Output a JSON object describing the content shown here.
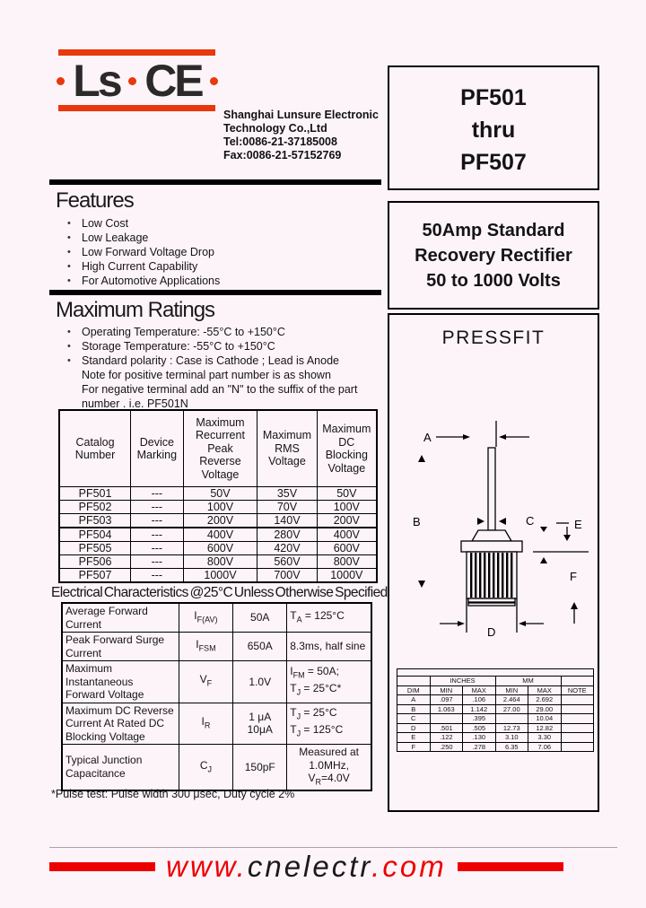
{
  "ui": {
    "bullet": "•"
  },
  "colors": {
    "logo_red": "#e8380d",
    "footer_red": "#ee0000",
    "page_bg": "#fdf4f9"
  },
  "logo": {
    "text_left": "Ls",
    "text_right": "CE"
  },
  "company": {
    "line1": "Shanghai Lunsure Electronic",
    "line2": "Technology Co.,Ltd",
    "line3": "Tel:0086-21-37185008",
    "line4": "Fax:0086-21-57152769"
  },
  "part_box": {
    "line1": "PF501",
    "line2": "thru",
    "line3": "PF507"
  },
  "desc_box": {
    "line1": "50Amp Standard",
    "line2": "Recovery Rectifier",
    "line3": "50 to 1000 Volts"
  },
  "features": {
    "title": "Features",
    "items": [
      "Low Cost",
      "Low Leakage",
      "Low Forward Voltage Drop",
      "High Current Capability",
      "For Automotive Applications"
    ]
  },
  "max_ratings": {
    "title": "Maximum Ratings",
    "items": [
      {
        "lines": [
          "Operating Temperature: -55°C to +150°C"
        ]
      },
      {
        "lines": [
          "Storage Temperature: -55°C to +150°C"
        ]
      },
      {
        "lines": [
          "Standard polarity : Case is Cathode ; Lead is Anode",
          "Note for positive terminal part number is as shown",
          "For negative terminal add an \"N\" to the suffix of the part",
          "number . i.e. PF501N"
        ]
      }
    ]
  },
  "ratings_table": {
    "headers": [
      "Catalog Number",
      "Device Marking",
      "Maximum Recurrent Peak Reverse Voltage",
      "Maximum RMS Voltage",
      "Maximum DC Blocking Voltage"
    ],
    "rows": [
      [
        "PF501",
        "---",
        "50V",
        "35V",
        "50V"
      ],
      [
        "PF502",
        "---",
        "100V",
        "70V",
        "100V"
      ],
      [
        "PF503",
        "---",
        "200V",
        "140V",
        "200V"
      ],
      [
        "PF504",
        "---",
        "400V",
        "280V",
        "400V"
      ],
      [
        "PF505",
        "---",
        "600V",
        "420V",
        "600V"
      ],
      [
        "PF506",
        "---",
        "800V",
        "560V",
        "800V"
      ],
      [
        "PF507",
        "---",
        "1000V",
        "700V",
        "1000V"
      ]
    ]
  },
  "elec": {
    "title": "Electrical Characteristics @25°C Unless Otherwise Specified",
    "footnote": "*Pulse test: Pulse width 300 μsec, Duty cycle 2%",
    "rows": [
      {
        "param": "Average Forward Current",
        "sym": "I",
        "sub": "F(AV)",
        "val": "50A",
        "c1pre": "T",
        "c1sub": "A",
        "c1post": " = 125°C"
      },
      {
        "param": "Peak Forward Surge Current",
        "sym": "I",
        "sub": "FSM",
        "val": "650A",
        "c1pre": "8.3ms, half sine",
        "c1sub": "",
        "c1post": ""
      },
      {
        "param": "Maximum Instantaneous Forward Voltage",
        "sym": "V",
        "sub": "F",
        "val": "1.0V",
        "c1pre": "I",
        "c1sub": "FM",
        "c1post": " = 50A;",
        "c2pre": "T",
        "c2sub": "J",
        "c2post": " = 25°C*"
      },
      {
        "param": "Maximum DC Reverse Current At Rated DC Blocking Voltage",
        "sym": "I",
        "sub": "R",
        "val": "1 μA",
        "val2": "10μA",
        "c1pre": "T",
        "c1sub": "J",
        "c1post": " = 25°C",
        "c2pre": "T",
        "c2sub": "J",
        "c2post": " = 125°C"
      },
      {
        "param": "Typical Junction Capacitance",
        "sym": "C",
        "sub": "J",
        "val": "150pF",
        "c1pre": "Measured at",
        "c1sub": "",
        "c1post": "",
        "c2pre": "1.0MHz, V",
        "c2sub": "R",
        "c2post": "=4.0V"
      }
    ]
  },
  "pressfit": {
    "title": "PRESSFIT",
    "labels": [
      "A",
      "B",
      "C",
      "D",
      "E",
      "F"
    ]
  },
  "dim": {
    "headers": {
      "dim": "DIM",
      "min": "MIN",
      "max": "MAX",
      "note": "NOTE",
      "inches": "INCHES",
      "mm": "MM"
    },
    "rows": [
      [
        "A",
        ".097",
        ".106",
        "2.464",
        "2.692",
        ""
      ],
      [
        "B",
        "1.063",
        "1.142",
        "27.00",
        "29.00",
        ""
      ],
      [
        "C",
        "",
        ".395",
        "",
        "10.04",
        ""
      ],
      [
        "D",
        ".501",
        ".505",
        "12.73",
        "12.82",
        ""
      ],
      [
        "E",
        ".122",
        ".130",
        "3.10",
        "3.30",
        ""
      ],
      [
        "F",
        ".250",
        ".278",
        "6.35",
        "7.06",
        ""
      ]
    ]
  },
  "footer": {
    "prefix": "www.",
    "name": "cnelectr",
    "suffix": ".com"
  }
}
